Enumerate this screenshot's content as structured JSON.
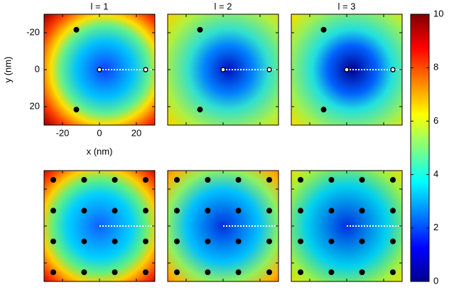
{
  "chart_data": {
    "type": "heatmap",
    "x_label": "x (nm)",
    "y_label": "y (nm)",
    "xlim": [
      -30,
      30
    ],
    "ylim": [
      30,
      -30
    ],
    "xticks": [
      -20,
      0,
      20
    ],
    "yticks": [
      -20,
      0,
      20
    ],
    "panels": [
      {
        "title": "l = 1",
        "points": {
          "x": [
            0,
            25,
            -12.5,
            -12.5
          ],
          "y": [
            0,
            0,
            -21.6,
            21.6
          ]
        }
      },
      {
        "title": "l = 2",
        "points": {
          "x": [
            0,
            25,
            -12.5,
            -12.5
          ],
          "y": [
            0,
            0,
            -21.6,
            21.6
          ]
        }
      },
      {
        "title": "l = 3",
        "points": {
          "x": [
            0,
            25,
            -12.5,
            -12.5
          ],
          "y": [
            0,
            0,
            -21.6,
            21.6
          ]
        }
      },
      {
        "points": {
          "x": [
            -25,
            -8.3,
            8.3,
            25,
            -25,
            -8.3,
            8.3,
            25,
            -25,
            -8.3,
            8.3,
            25,
            -25,
            -8.3,
            8.3,
            25
          ],
          "y": [
            -25,
            -25,
            -25,
            -25,
            -8.3,
            -8.3,
            -8.3,
            -8.3,
            8.3,
            8.3,
            8.3,
            8.3,
            25,
            25,
            25,
            25
          ]
        }
      },
      {
        "points": {
          "x": [
            -25,
            -8.3,
            8.3,
            25,
            -25,
            -8.3,
            8.3,
            25,
            -25,
            -8.3,
            8.3,
            25,
            -25,
            -8.3,
            8.3,
            25
          ],
          "y": [
            -25,
            -25,
            -25,
            -25,
            -8.3,
            -8.3,
            -8.3,
            -8.3,
            8.3,
            8.3,
            8.3,
            8.3,
            25,
            25,
            25,
            25
          ]
        }
      },
      {
        "points": {
          "x": [
            -25,
            -8.3,
            8.3,
            25,
            -25,
            -8.3,
            8.3,
            25,
            -25,
            -8.3,
            8.3,
            25,
            -25,
            -8.3,
            8.3,
            25
          ],
          "y": [
            -25,
            -25,
            -25,
            -25,
            -8.3,
            -8.3,
            -8.3,
            -8.3,
            8.3,
            8.3,
            8.3,
            8.3,
            25,
            25,
            25,
            25
          ]
        }
      }
    ],
    "colorbar": {
      "lim": [
        0,
        10
      ],
      "ticks": [
        0,
        2,
        4,
        6,
        8,
        10
      ],
      "colormap": [
        "#00008f",
        "#0000ff",
        "#0080ff",
        "#00ffff",
        "#80ff80",
        "#ffff00",
        "#ff8000",
        "#ff0000",
        "#800000"
      ]
    }
  }
}
